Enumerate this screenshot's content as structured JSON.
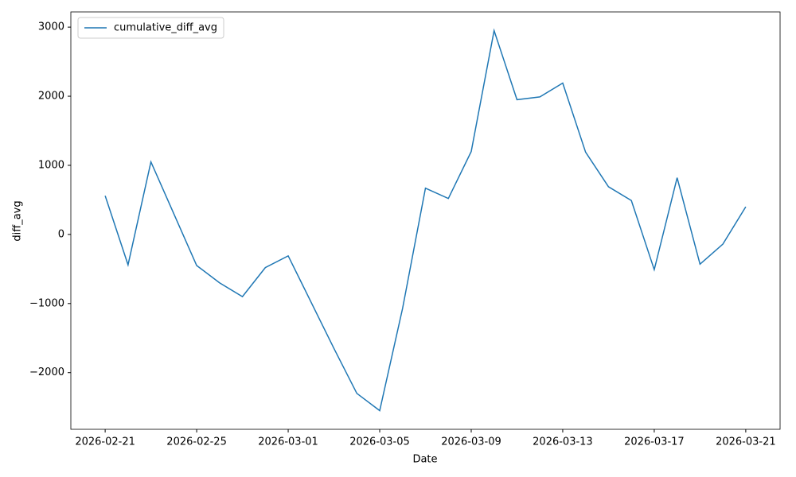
{
  "chart_data": {
    "type": "line",
    "x_label": "Date",
    "y_label": "diff_avg",
    "legend": "upper left",
    "x": [
      "2026-02-21",
      "2026-02-22",
      "2026-02-23",
      "2026-02-24",
      "2026-02-25",
      "2026-02-26",
      "2026-02-27",
      "2026-02-28",
      "2026-03-01",
      "2026-03-02",
      "2026-03-03",
      "2026-03-04",
      "2026-03-05",
      "2026-03-06",
      "2026-03-07",
      "2026-03-08",
      "2026-03-09",
      "2026-03-10",
      "2026-03-11",
      "2026-03-12",
      "2026-03-13",
      "2026-03-14",
      "2026-03-15",
      "2026-03-16",
      "2026-03-17",
      "2026-03-18",
      "2026-03-19",
      "2026-03-20",
      "2026-03-21"
    ],
    "series": [
      {
        "name": "cumulative_diff_avg",
        "color": "#1f77b4",
        "values": [
          560,
          -440,
          1050,
          300,
          -450,
          -700,
          -900,
          -480,
          -310,
          -980,
          -1650,
          -2300,
          -2550,
          -1070,
          670,
          520,
          1200,
          2950,
          1950,
          1990,
          2190,
          1190,
          690,
          490,
          -510,
          820,
          -430,
          -140,
          400
        ]
      }
    ],
    "xlim": [
      "2026-02-19T12:00Z",
      "2026-03-22T12:00Z"
    ],
    "xticks": [
      "2026-02-21",
      "2026-02-25",
      "2026-03-01",
      "2026-03-05",
      "2026-03-09",
      "2026-03-13",
      "2026-03-17",
      "2026-03-21"
    ],
    "ylim": [
      -2820,
      3220
    ],
    "yticks": [
      {
        "value": -2000,
        "label": "−2000"
      },
      {
        "value": -1000,
        "label": "−1000"
      },
      0,
      1000,
      2000,
      3000
    ]
  }
}
